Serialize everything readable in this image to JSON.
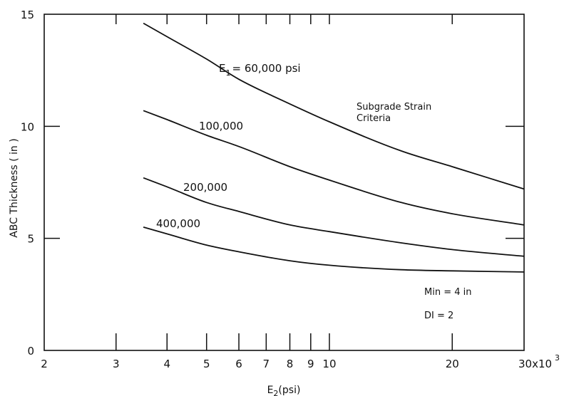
{
  "chart_data": {
    "type": "line",
    "title": "",
    "xlabel_main": "E",
    "xlabel_sub": "2",
    "xlabel_rest": "(psi)",
    "ylabel": "ABC Thickness ( in )",
    "x_scale": "log",
    "xlim": [
      2,
      30
    ],
    "ylim": [
      0,
      15
    ],
    "x_ticks": [
      {
        "value": 2,
        "label": "2"
      },
      {
        "value": 3,
        "label": "3"
      },
      {
        "value": 4,
        "label": "4"
      },
      {
        "value": 5,
        "label": "5"
      },
      {
        "value": 6,
        "label": "6"
      },
      {
        "value": 7,
        "label": "7"
      },
      {
        "value": 8,
        "label": "8"
      },
      {
        "value": 9,
        "label": "9"
      },
      {
        "value": 10,
        "label": "10"
      },
      {
        "value": 20,
        "label": "20"
      },
      {
        "value": 30,
        "label": "30x10"
      }
    ],
    "x_multiplier_exp": "3",
    "y_ticks": [
      {
        "value": 0,
        "label": "0"
      },
      {
        "value": 5,
        "label": "5"
      },
      {
        "value": 10,
        "label": "10"
      },
      {
        "value": 15,
        "label": "15"
      }
    ],
    "grid": false,
    "series": [
      {
        "name": "E1 = 60,000 psi",
        "label_main": "E",
        "label_sub": "1",
        "label_rest": "= 60,000 psi",
        "x": [
          3.5,
          4,
          5,
          6,
          8,
          10,
          15,
          20,
          30
        ],
        "y": [
          14.6,
          14.0,
          13.0,
          12.1,
          11.0,
          10.2,
          8.9,
          8.2,
          7.2
        ]
      },
      {
        "name": "100,000",
        "label_main": "100,000",
        "x": [
          3.5,
          4,
          5,
          6,
          8,
          10,
          15,
          20,
          30
        ],
        "y": [
          10.7,
          10.3,
          9.6,
          9.1,
          8.2,
          7.6,
          6.6,
          6.1,
          5.6
        ]
      },
      {
        "name": "200,000",
        "label_main": "200,000",
        "x": [
          3.5,
          4,
          5,
          6,
          8,
          10,
          15,
          20,
          30
        ],
        "y": [
          7.7,
          7.3,
          6.6,
          6.2,
          5.6,
          5.3,
          4.8,
          4.5,
          4.2
        ]
      },
      {
        "name": "400,000",
        "label_main": "400,000",
        "x": [
          3.5,
          4,
          5,
          6,
          8,
          10,
          15,
          20,
          30
        ],
        "y": [
          5.5,
          5.2,
          4.7,
          4.4,
          4.0,
          3.8,
          3.6,
          3.55,
          3.5
        ]
      }
    ],
    "annotations": [
      {
        "id": "criteria-line-1",
        "text": "Subgrade Strain"
      },
      {
        "id": "criteria-line-2",
        "text": "Criteria"
      },
      {
        "id": "min-note",
        "text": "Min = 4 in"
      },
      {
        "id": "di-note",
        "text": "DI = 2"
      }
    ]
  }
}
